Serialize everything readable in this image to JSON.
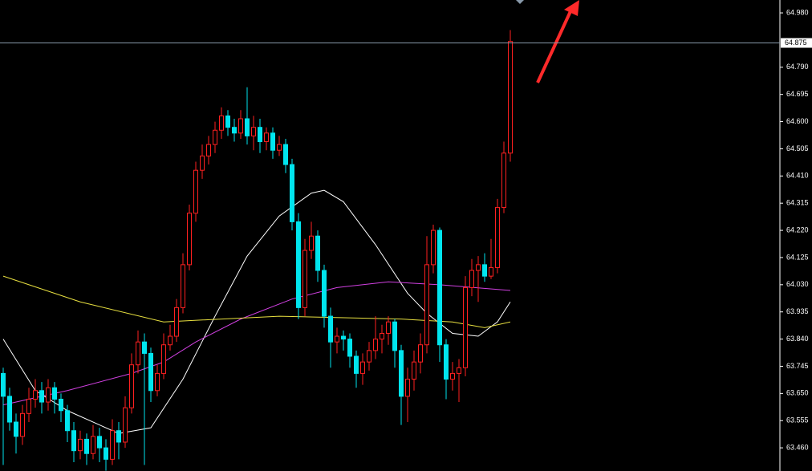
{
  "chart_data": {
    "type": "candlestick",
    "open": [
      63.72,
      63.64,
      63.55,
      63.5,
      63.58,
      63.63,
      63.66,
      63.62,
      63.67,
      63.63,
      63.59,
      63.52,
      63.45,
      63.49,
      63.44,
      63.5,
      63.46,
      63.42,
      63.52,
      63.48,
      63.6,
      63.75,
      63.83,
      63.79,
      63.66,
      63.72,
      63.82,
      63.85,
      63.95,
      64.1,
      64.28,
      64.43,
      64.48,
      64.52,
      64.57,
      64.62,
      64.58,
      64.56,
      64.61,
      64.55,
      64.58,
      64.53,
      64.56,
      64.5,
      64.52,
      64.45,
      64.25,
      63.95,
      64.15,
      64.2,
      64.08,
      63.92,
      63.83,
      63.85,
      63.84,
      63.78,
      63.72,
      63.76,
      63.8,
      63.84,
      63.86,
      63.9,
      63.8,
      63.64,
      63.7,
      63.76,
      63.82,
      64.1,
      64.22,
      63.82,
      63.7,
      63.72,
      63.74,
      64.02,
      64.08,
      64.1,
      64.06,
      64.09,
      64.3,
      64.49
    ],
    "high": [
      63.74,
      63.67,
      63.58,
      63.61,
      63.67,
      63.7,
      63.69,
      63.7,
      63.69,
      63.65,
      63.61,
      63.55,
      63.52,
      63.51,
      63.54,
      63.53,
      63.49,
      63.56,
      63.55,
      63.64,
      63.79,
      63.87,
      63.86,
      63.81,
      63.75,
      63.86,
      63.89,
      63.98,
      64.14,
      64.31,
      64.46,
      64.52,
      64.55,
      64.6,
      64.65,
      64.64,
      64.61,
      64.64,
      64.72,
      64.62,
      64.61,
      64.58,
      64.58,
      64.55,
      64.54,
      64.47,
      64.28,
      64.19,
      64.25,
      64.22,
      64.1,
      63.95,
      63.88,
      63.87,
      63.86,
      63.8,
      63.79,
      63.83,
      63.92,
      63.89,
      63.92,
      63.91,
      63.82,
      63.74,
      63.8,
      63.86,
      64.2,
      64.24,
      64.23,
      63.84,
      63.76,
      63.77,
      64.06,
      64.12,
      64.13,
      64.14,
      64.19,
      64.33,
      64.53,
      64.92
    ],
    "low": [
      63.4,
      63.52,
      63.44,
      63.47,
      63.55,
      63.6,
      63.58,
      63.59,
      63.58,
      63.55,
      63.48,
      63.41,
      63.42,
      63.4,
      63.42,
      63.41,
      63.38,
      63.4,
      63.42,
      63.46,
      63.58,
      63.72,
      63.4,
      63.62,
      63.64,
      63.7,
      63.8,
      63.83,
      63.93,
      64.08,
      64.25,
      64.4,
      64.45,
      64.49,
      64.54,
      64.55,
      64.53,
      64.54,
      64.52,
      64.5,
      64.49,
      64.5,
      64.47,
      64.48,
      64.42,
      64.22,
      63.91,
      63.92,
      64.12,
      64.04,
      63.88,
      63.74,
      63.79,
      63.8,
      63.74,
      63.67,
      63.68,
      63.73,
      63.77,
      63.79,
      63.82,
      63.74,
      63.54,
      63.55,
      63.66,
      63.72,
      63.79,
      64.07,
      63.76,
      63.63,
      63.66,
      63.62,
      63.71,
      63.99,
      63.97,
      64.04,
      64.05,
      64.07,
      64.28,
      64.46
    ],
    "close": [
      63.64,
      63.55,
      63.5,
      63.58,
      63.63,
      63.66,
      63.62,
      63.67,
      63.63,
      63.59,
      63.52,
      63.45,
      63.49,
      63.44,
      63.5,
      63.46,
      63.42,
      63.52,
      63.48,
      63.6,
      63.75,
      63.83,
      63.79,
      63.66,
      63.72,
      63.82,
      63.85,
      63.95,
      64.1,
      64.28,
      64.43,
      64.48,
      64.52,
      64.57,
      64.62,
      64.58,
      64.56,
      64.61,
      64.55,
      64.58,
      64.53,
      64.56,
      64.5,
      64.52,
      64.45,
      64.25,
      63.95,
      64.15,
      64.2,
      64.08,
      63.92,
      63.83,
      63.85,
      63.84,
      63.78,
      63.72,
      63.76,
      63.8,
      63.84,
      63.86,
      63.9,
      63.8,
      63.64,
      63.7,
      63.76,
      63.82,
      64.1,
      64.22,
      63.82,
      63.7,
      63.72,
      63.74,
      64.02,
      64.08,
      64.1,
      64.06,
      64.09,
      64.3,
      64.49,
      64.88
    ],
    "up_color": "#ff2020",
    "down_color": "#00e5ee",
    "overlays": [
      {
        "color": "#ffffff",
        "x": [
          0,
          5,
          10,
          15,
          18,
          23,
          28,
          33,
          38,
          43,
          48,
          50,
          53,
          58,
          63,
          66,
          70,
          74,
          77,
          79
        ],
        "values": [
          63.84,
          63.66,
          63.59,
          63.54,
          63.51,
          63.53,
          63.7,
          63.92,
          64.13,
          64.27,
          64.35,
          64.36,
          64.32,
          64.17,
          64.0,
          63.93,
          63.86,
          63.85,
          63.9,
          63.97
        ]
      },
      {
        "color": "#d040e0",
        "x": [
          0,
          10,
          20,
          25,
          30,
          37,
          45,
          52,
          60,
          68,
          79
        ],
        "values": [
          63.61,
          63.66,
          63.72,
          63.76,
          63.83,
          63.91,
          63.98,
          64.02,
          64.04,
          64.03,
          64.01
        ]
      },
      {
        "color": "#e8e040",
        "x": [
          0,
          12,
          25,
          43,
          62,
          70,
          75,
          79
        ],
        "values": [
          64.06,
          63.97,
          63.9,
          63.92,
          63.91,
          63.9,
          63.88,
          63.9
        ]
      }
    ],
    "last_price": 64.875,
    "ylim": [
      63.379,
      65.025
    ],
    "yticks": [
      {
        "value": 64.98,
        "label": "64.980"
      },
      {
        "value": 64.79,
        "label": "64.790"
      },
      {
        "value": 64.695,
        "label": "64.695"
      },
      {
        "value": 64.6,
        "label": "64.600"
      },
      {
        "value": 64.505,
        "label": "64.505"
      },
      {
        "value": 64.41,
        "label": "64.410"
      },
      {
        "value": 64.315,
        "label": "64.315"
      },
      {
        "value": 64.22,
        "label": "64.220"
      },
      {
        "value": 64.125,
        "label": "64.125"
      },
      {
        "value": 64.03,
        "label": "64.030"
      },
      {
        "value": 63.935,
        "label": "63.935"
      },
      {
        "value": 63.84,
        "label": "63.840"
      },
      {
        "value": 63.745,
        "label": "63.745"
      },
      {
        "value": 63.65,
        "label": "63.650"
      },
      {
        "value": 63.555,
        "label": "63.555"
      },
      {
        "value": 63.46,
        "label": "63.460"
      }
    ]
  }
}
